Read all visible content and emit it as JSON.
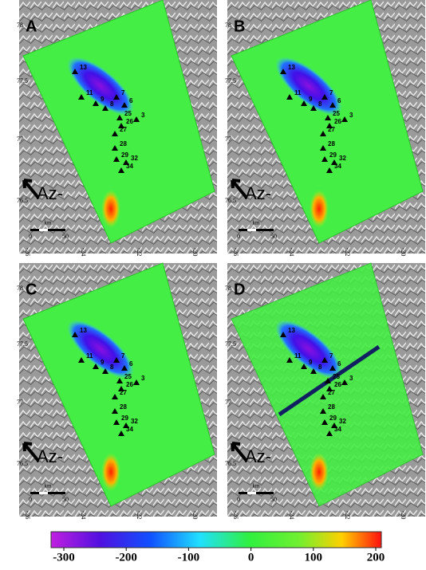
{
  "panels": [
    {
      "label": "A"
    },
    {
      "label": "B"
    },
    {
      "label": "C"
    },
    {
      "label": "D"
    }
  ],
  "stations": [
    "13",
    "11",
    "9",
    "8",
    "7",
    "6",
    "25",
    "3",
    "26",
    "27",
    "28",
    "29",
    "32",
    "34"
  ],
  "lat_ticks": [
    "78",
    "77.5",
    "77",
    "76.5"
  ],
  "lon_ticks": [
    "-26",
    "-24",
    "-22",
    "-20"
  ],
  "azimuth": "Az-",
  "scale": {
    "unit": "km",
    "start": "0",
    "end": "50"
  },
  "colorbar": {
    "ticks": [
      -300,
      -200,
      -100,
      0,
      100,
      200
    ]
  }
}
